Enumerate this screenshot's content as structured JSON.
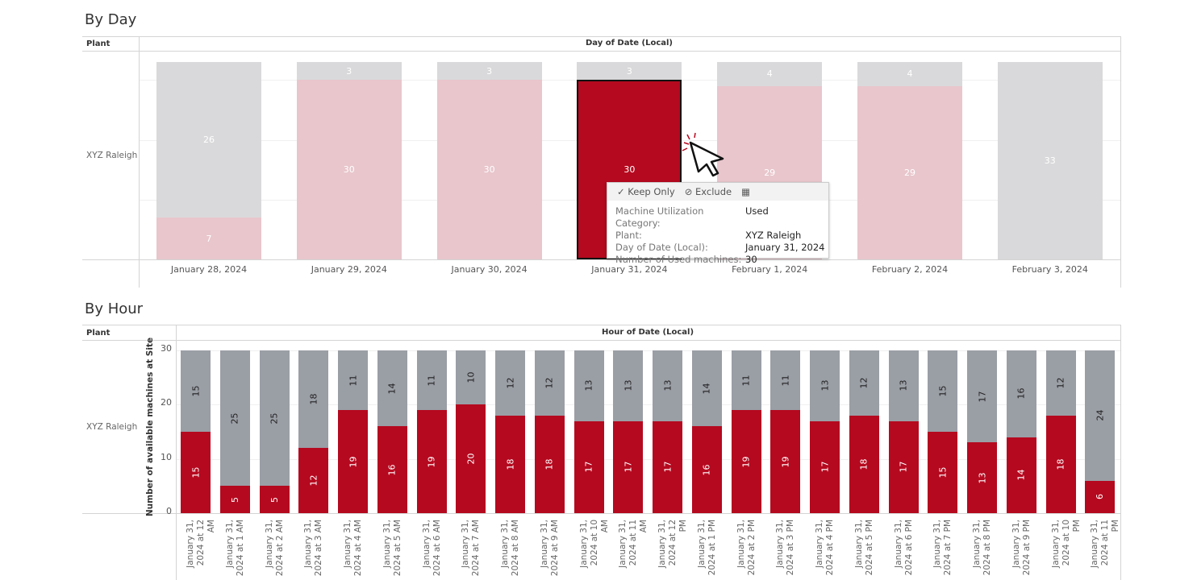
{
  "by_day": {
    "title": "By Day",
    "row_header": "Plant",
    "col_header": "Day of Date (Local)",
    "row_label": "XYZ Raleigh"
  },
  "by_hour": {
    "title": "By Hour",
    "row_header": "Plant",
    "col_header": "Hour of Date (Local)",
    "row_label": "XYZ Raleigh"
  },
  "tooltip": {
    "keep_only": "Keep Only",
    "exclude": "Exclude",
    "rows": [
      {
        "k": "Machine Utilization Category:",
        "v": "Used"
      },
      {
        "k": "Plant:",
        "v": "XYZ Raleigh"
      },
      {
        "k": "Day of Date (Local):",
        "v": "January 31, 2024"
      },
      {
        "k": "Number of Used machines:",
        "v": "30"
      }
    ]
  },
  "chart_data": [
    {
      "type": "bar",
      "stacked": true,
      "title": "By Day",
      "xlabel": "Day of Date (Local)",
      "categories": [
        "January 28, 2024",
        "January 29, 2024",
        "January 30, 2024",
        "January 31, 2024",
        "February 1, 2024",
        "February 2, 2024",
        "February 3, 2024"
      ],
      "series": [
        {
          "values": [
            7,
            30,
            30,
            30,
            29,
            29,
            0
          ],
          "color": "#b5091f"
        },
        {
          "values": [
            26,
            3,
            3,
            3,
            4,
            4,
            33
          ],
          "color": "#9a9ea5"
        }
      ],
      "selected": "January 31, 2024",
      "ylim": [
        0,
        33
      ],
      "grid": true
    },
    {
      "type": "bar",
      "stacked": true,
      "title": "By Hour",
      "xlabel": "Hour of Date (Local)",
      "ylabel": "Number of available machines at Site",
      "categories": [
        "January 31, 2024 at 12 AM",
        "January 31, 2024 at 1 AM",
        "January 31, 2024 at 2 AM",
        "January 31, 2024 at 3 AM",
        "January 31, 2024 at 4 AM",
        "January 31, 2024 at 5 AM",
        "January 31, 2024 at 6 AM",
        "January 31, 2024 at 7 AM",
        "January 31, 2024 at 8 AM",
        "January 31, 2024 at 9 AM",
        "January 31, 2024 at 10 AM",
        "January 31, 2024 at 11 AM",
        "January 31, 2024 at 12 PM",
        "January 31, 2024 at 1 PM",
        "January 31, 2024 at 2 PM",
        "January 31, 2024 at 3 PM",
        "January 31, 2024 at 4 PM",
        "January 31, 2024 at 5 PM",
        "January 31, 2024 at 6 PM",
        "January 31, 2024 at 7 PM",
        "January 31, 2024 at 8 PM",
        "January 31, 2024 at 9 PM",
        "January 31, 2024 at 10 PM",
        "January 31, 2024 at 11 PM"
      ],
      "series": [
        {
          "values": [
            15,
            5,
            5,
            12,
            19,
            16,
            19,
            20,
            18,
            18,
            17,
            17,
            17,
            16,
            19,
            19,
            17,
            18,
            17,
            15,
            13,
            14,
            18,
            6
          ],
          "color": "#b5091f"
        },
        {
          "values": [
            15,
            25,
            25,
            18,
            11,
            14,
            11,
            10,
            12,
            12,
            13,
            13,
            13,
            14,
            11,
            11,
            13,
            12,
            13,
            15,
            17,
            16,
            12,
            24
          ],
          "color": "#9a9ea5"
        }
      ],
      "yticks": [
        0,
        10,
        20,
        30
      ],
      "ylim": [
        0,
        30
      ],
      "grid": true
    }
  ]
}
